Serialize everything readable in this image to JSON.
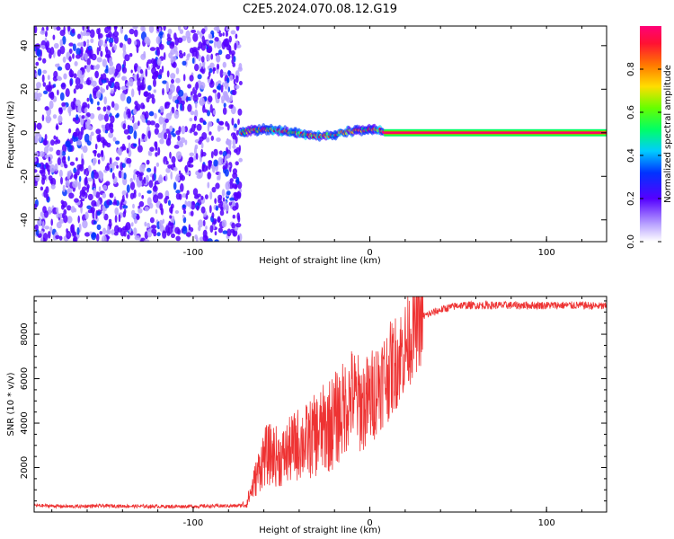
{
  "title": "C2E5.2024.070.08.12.G19",
  "chart_data": [
    {
      "type": "heatmap",
      "xlabel": "Height of straight line (km)",
      "ylabel": "Frequency (Hz)",
      "xlim": [
        -190,
        134
      ],
      "ylim": [
        -50,
        49
      ],
      "x_ticks": [
        -100,
        0,
        100
      ],
      "y_ticks": [
        -40,
        -20,
        0,
        20,
        40
      ],
      "colorbar": {
        "label": "Normalized spectral amplitude",
        "range": [
          0,
          1
        ],
        "ticks": [
          0.0,
          0.2,
          0.4,
          0.6,
          0.8
        ]
      },
      "description_segments": [
        {
          "x_range": [
            -190,
            -73
          ],
          "pattern": "diffuse noise, low amplitude, spans full frequency range"
        },
        {
          "x_range": [
            -73,
            8
          ],
          "pattern": "concentrated near 0 Hz with small meanders (about -3 to +2 Hz), mixed amplitude"
        },
        {
          "x_range": [
            8,
            134
          ],
          "pattern": "single stable line at 0 Hz, amplitude near 1"
        }
      ]
    },
    {
      "type": "line",
      "xlabel": "Height of straight line (km)",
      "ylabel": "SNR (10 * v/v)",
      "xlim": [
        -190,
        134
      ],
      "ylim": [
        0,
        9700
      ],
      "x_ticks": [
        -100,
        0,
        100
      ],
      "y_ticks": [
        2000,
        4000,
        6000,
        8000
      ],
      "series": [
        {
          "color": "#ee3333",
          "x": [
            -190,
            -170,
            -150,
            -130,
            -110,
            -90,
            -75,
            -70,
            -66,
            -60,
            -55,
            -50,
            -45,
            -40,
            -35,
            -30,
            -25,
            -20,
            -15,
            -10,
            -5,
            0,
            5,
            10,
            15,
            20,
            25,
            30,
            40,
            50,
            60,
            80,
            100,
            120,
            134
          ],
          "y": [
            300,
            250,
            280,
            260,
            250,
            270,
            280,
            350,
            1200,
            2500,
            2600,
            2400,
            2800,
            3100,
            3200,
            3500,
            3800,
            4100,
            4600,
            5300,
            4800,
            5000,
            5800,
            6200,
            6800,
            7400,
            8300,
            8800,
            9100,
            9300,
            9300,
            9300,
            9300,
            9300,
            9250
          ]
        }
      ]
    }
  ]
}
